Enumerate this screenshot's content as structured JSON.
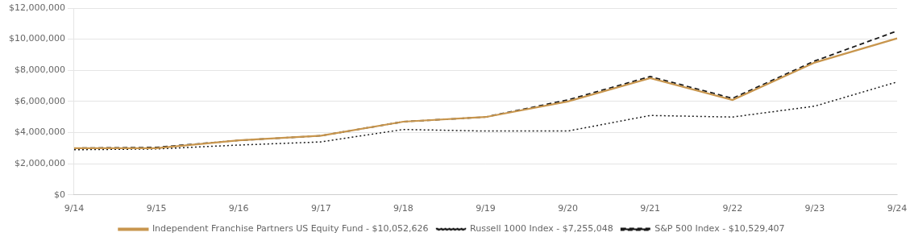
{
  "chart_data": {
    "type": "line",
    "categories": [
      "9/14",
      "9/15",
      "9/16",
      "9/17",
      "9/18",
      "9/19",
      "9/20",
      "9/21",
      "9/22",
      "9/23",
      "9/24"
    ],
    "series": [
      {
        "name": "Independent Franchise Partners US Equity Fund - $10,052,626",
        "color": "#C8964E",
        "line_style": "solid",
        "values": [
          3000000,
          3000000,
          3500000,
          3800000,
          4700000,
          5000000,
          6000000,
          7500000,
          6100000,
          8500000,
          10052626
        ]
      },
      {
        "name": "Russell 1000 Index - $7,255,048",
        "color": "#1a1a1a",
        "line_style": "dotted",
        "values": [
          2900000,
          2950000,
          3200000,
          3400000,
          4200000,
          4100000,
          4100000,
          5100000,
          5000000,
          5700000,
          7255048
        ]
      },
      {
        "name": "S&P 500 Index - $10,529,407",
        "color": "#1a1a1a",
        "line_style": "dashed",
        "values": [
          3000000,
          3050000,
          3500000,
          3800000,
          4700000,
          5000000,
          6100000,
          7600000,
          6200000,
          8600000,
          10529407
        ]
      }
    ],
    "ylim": [
      0,
      12000000
    ],
    "yticks": [
      {
        "value": 0,
        "label": "$0"
      },
      {
        "value": 2000000,
        "label": "$2,000,000"
      },
      {
        "value": 4000000,
        "label": "$4,000,000"
      },
      {
        "value": 6000000,
        "label": "$6,000,000"
      },
      {
        "value": 8000000,
        "label": "$8,000,000"
      },
      {
        "value": 10000000,
        "label": "$10,000,000"
      },
      {
        "value": 12000000,
        "label": "$12,000,000"
      }
    ],
    "grid": true,
    "legend": "bottom",
    "marker": "none"
  }
}
